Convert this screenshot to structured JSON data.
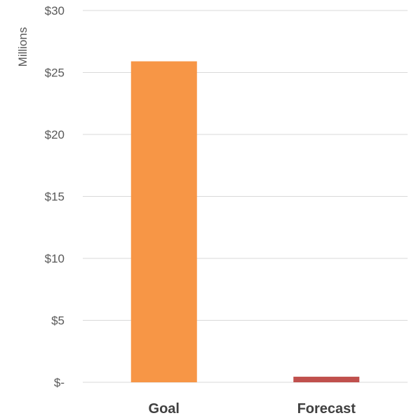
{
  "chart_data": {
    "type": "bar",
    "ylabel": "Millions",
    "categories": [
      "Goal",
      "Forecast"
    ],
    "values": [
      25.9,
      0.45
    ],
    "bar_colors": [
      "#F79646",
      "#C0504D"
    ],
    "ylim": [
      0,
      30
    ],
    "yticks": [
      0,
      5,
      10,
      15,
      20,
      25,
      30
    ],
    "ytick_labels": [
      "$-",
      "$5",
      "$10",
      "$15",
      "$20",
      "$25",
      "$30"
    ],
    "grid": true,
    "legend": "none"
  }
}
